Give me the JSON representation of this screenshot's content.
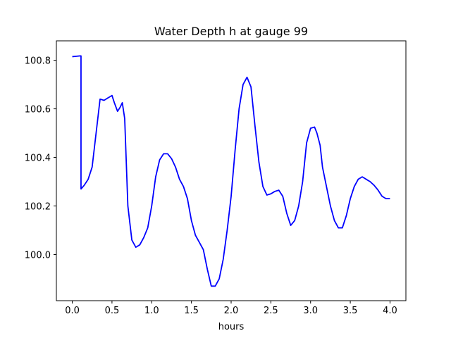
{
  "chart_data": {
    "type": "line",
    "title": "Water Depth h at gauge 99",
    "xlabel": "hours",
    "ylabel": "",
    "xlim": [
      -0.2,
      4.2
    ],
    "ylim": [
      99.81,
      100.88
    ],
    "xticks": [
      0.0,
      0.5,
      1.0,
      1.5,
      2.0,
      2.5,
      3.0,
      3.5,
      4.0
    ],
    "xtick_labels": [
      "0.0",
      "0.5",
      "1.0",
      "1.5",
      "2.0",
      "2.5",
      "3.0",
      "3.5",
      "4.0"
    ],
    "yticks": [
      100.0,
      100.2,
      100.4,
      100.6,
      100.8
    ],
    "ytick_labels": [
      "100.0",
      "100.2",
      "100.4",
      "100.6",
      "100.8"
    ],
    "grid": false,
    "series_color": "#0000ff",
    "series": [
      {
        "x": [
          0.0,
          0.1,
          0.11,
          0.11,
          0.15,
          0.2,
          0.25,
          0.3,
          0.35,
          0.4,
          0.45,
          0.5,
          0.53,
          0.57,
          0.6,
          0.63,
          0.66,
          0.7,
          0.75,
          0.8,
          0.85,
          0.9,
          0.95,
          1.0,
          1.05,
          1.1,
          1.15,
          1.2,
          1.25,
          1.3,
          1.35,
          1.4,
          1.45,
          1.5,
          1.55,
          1.6,
          1.65,
          1.7,
          1.75,
          1.8,
          1.85,
          1.9,
          1.95,
          2.0,
          2.05,
          2.1,
          2.15,
          2.2,
          2.25,
          2.3,
          2.35,
          2.4,
          2.45,
          2.5,
          2.55,
          2.6,
          2.65,
          2.7,
          2.75,
          2.8,
          2.85,
          2.9,
          2.95,
          3.0,
          3.05,
          3.08,
          3.12,
          3.15,
          3.2,
          3.25,
          3.3,
          3.35,
          3.4,
          3.45,
          3.5,
          3.55,
          3.6,
          3.65,
          3.7,
          3.75,
          3.8,
          3.85,
          3.9,
          3.95,
          4.0
        ],
        "y": [
          100.815,
          100.818,
          100.818,
          100.27,
          100.285,
          100.31,
          100.36,
          100.5,
          100.64,
          100.635,
          100.645,
          100.655,
          100.625,
          100.59,
          100.605,
          100.625,
          100.56,
          100.2,
          100.06,
          100.03,
          100.04,
          100.07,
          100.11,
          100.2,
          100.32,
          100.39,
          100.415,
          100.415,
          100.395,
          100.36,
          100.31,
          100.28,
          100.23,
          100.14,
          100.08,
          100.05,
          100.02,
          99.94,
          99.87,
          99.87,
          99.9,
          99.98,
          100.1,
          100.24,
          100.43,
          100.6,
          100.7,
          100.73,
          100.69,
          100.53,
          100.38,
          100.28,
          100.245,
          100.25,
          100.26,
          100.265,
          100.24,
          100.17,
          100.12,
          100.14,
          100.2,
          100.3,
          100.46,
          100.52,
          100.525,
          100.5,
          100.45,
          100.36,
          100.28,
          100.2,
          100.14,
          100.11,
          100.11,
          100.16,
          100.23,
          100.28,
          100.31,
          100.32,
          100.31,
          100.3,
          100.285,
          100.265,
          100.24,
          100.23,
          100.23
        ]
      }
    ]
  }
}
